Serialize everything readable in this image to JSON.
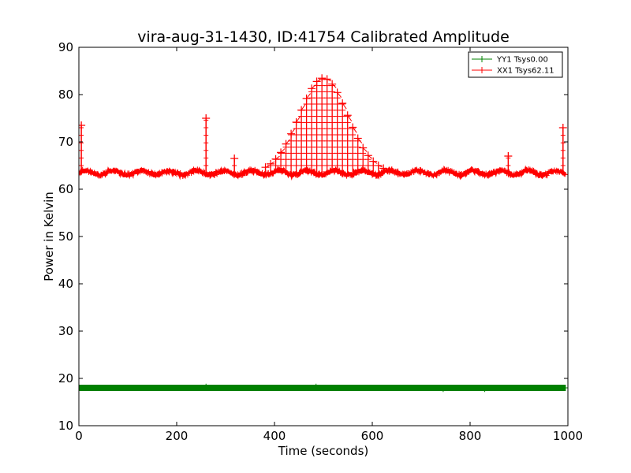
{
  "chart_data": {
    "type": "line",
    "title": "vira-aug-31-1430, ID:41754 Calibrated Amplitude",
    "xlabel": "Time (seconds)",
    "ylabel": "Power in Kelvin",
    "xlim": [
      0,
      1000
    ],
    "ylim": [
      10,
      90
    ],
    "x_ticks": [
      0,
      200,
      400,
      600,
      800,
      1000
    ],
    "y_ticks": [
      10,
      20,
      30,
      40,
      50,
      60,
      70,
      80,
      90
    ],
    "x_tick_labels": [
      "0",
      "200",
      "400",
      "600",
      "800",
      "1000"
    ],
    "y_tick_labels": [
      "10",
      "20",
      "30",
      "40",
      "50",
      "60",
      "70",
      "80",
      "90"
    ],
    "grid": false,
    "legend": "top-right",
    "marker": "+",
    "series": [
      {
        "name": "YY1 Tsys0.00",
        "color": "#008000",
        "baseline": 18.0,
        "x_range": [
          0,
          995
        ],
        "points": [
          [
            0,
            18.0
          ],
          [
            100,
            18.0
          ],
          [
            200,
            18.0
          ],
          [
            260,
            18.2
          ],
          [
            300,
            18.0
          ],
          [
            400,
            18.0
          ],
          [
            485,
            18.2
          ],
          [
            500,
            18.0
          ],
          [
            600,
            18.0
          ],
          [
            700,
            18.0
          ],
          [
            745,
            17.8
          ],
          [
            800,
            18.0
          ],
          [
            830,
            17.8
          ],
          [
            900,
            18.0
          ],
          [
            995,
            18.0
          ]
        ]
      },
      {
        "name": "XX1 Tsys62.11",
        "color": "#ff0000",
        "baseline": 63.5,
        "x_range": [
          0,
          995
        ],
        "points": [
          [
            0,
            63.5
          ],
          [
            5,
            73.5
          ],
          [
            10,
            64.0
          ],
          [
            50,
            63.6
          ],
          [
            100,
            64.0
          ],
          [
            150,
            63.8
          ],
          [
            200,
            64.2
          ],
          [
            250,
            63.8
          ],
          [
            260,
            75.0
          ],
          [
            270,
            63.5
          ],
          [
            310,
            63.2
          ],
          [
            320,
            66.5
          ],
          [
            330,
            63.2
          ],
          [
            380,
            65.2
          ],
          [
            400,
            67.5
          ],
          [
            420,
            70.5
          ],
          [
            440,
            75.0
          ],
          [
            460,
            79.0
          ],
          [
            480,
            82.5
          ],
          [
            500,
            83.5
          ],
          [
            520,
            81.0
          ],
          [
            540,
            77.0
          ],
          [
            560,
            72.5
          ],
          [
            580,
            68.5
          ],
          [
            600,
            65.0
          ],
          [
            620,
            64.0
          ],
          [
            700,
            63.5
          ],
          [
            800,
            63.2
          ],
          [
            878,
            67.0
          ],
          [
            900,
            63.2
          ],
          [
            960,
            63.4
          ],
          [
            990,
            73.0
          ],
          [
            995,
            63.5
          ]
        ],
        "spikes": [
          [
            5,
            73.5
          ],
          [
            260,
            75.0
          ],
          [
            318,
            66.5
          ],
          [
            878,
            67.0
          ],
          [
            990,
            73.0
          ]
        ],
        "peak": {
          "center": 500,
          "height": 83.5,
          "width": 70
        }
      }
    ]
  }
}
